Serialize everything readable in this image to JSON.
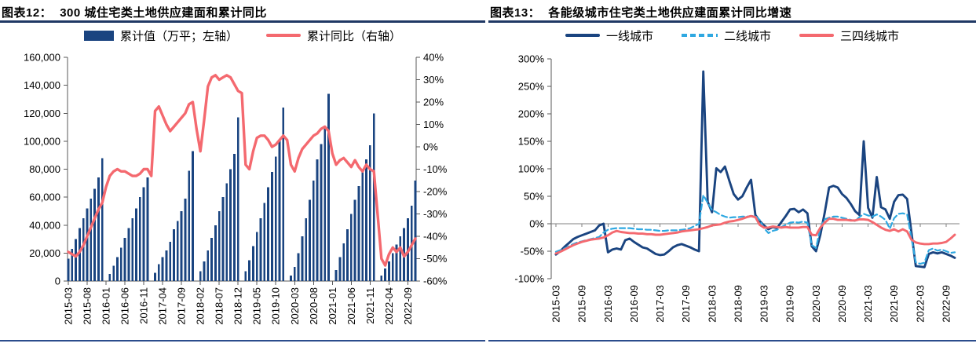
{
  "colors": {
    "navy": "#1A4480",
    "salmon": "#F4696F",
    "lightblue": "#2FA8E1",
    "rule_dark": "#1F3864",
    "rule_bottom": "#2B4C8C",
    "axis_gray": "#595959"
  },
  "chart_data": [
    {
      "type": "bar",
      "fig_label": "图表12：",
      "title": "300 城住宅类土地供应建面和累计同比",
      "legend_position": "top",
      "x_monthly_start": "2015-03",
      "x_tick_every": 5,
      "x_tick_labels": [
        "2015-03",
        "2015-08",
        "2016-01",
        "2016-06",
        "2016-11",
        "2017-04",
        "2017-09",
        "2018-02",
        "2018-07",
        "2018-12",
        "2019-05",
        "2019-10",
        "2020-03",
        "2020-08",
        "2021-01",
        "2021-06",
        "2021-11",
        "2022-04",
        "2022-09"
      ],
      "left_axis": {
        "min": 0,
        "max": 160000,
        "step": 20000,
        "tick_labels": [
          "0",
          "20,000",
          "40,000",
          "60,000",
          "80,000",
          "100,000",
          "120,000",
          "140,000",
          "160,000"
        ]
      },
      "right_axis": {
        "min": -60,
        "max": 40,
        "step": 10,
        "tick_labels": [
          "-60%",
          "-50%",
          "-40%",
          "-30%",
          "-20%",
          "-10%",
          "0%",
          "10%",
          "20%",
          "30%",
          "40%"
        ]
      },
      "series": [
        {
          "name": "累计值（万平；左轴）",
          "type": "bar",
          "axis": "left",
          "color": "#1A4480",
          "values": [
            16000,
            23000,
            30000,
            38000,
            45000,
            52000,
            59000,
            66000,
            74000,
            88000,
            null,
            5000,
            11000,
            17000,
            24000,
            31000,
            38000,
            45000,
            52000,
            60000,
            67000,
            74000,
            null,
            6000,
            12000,
            17000,
            22000,
            28000,
            37000,
            43000,
            50000,
            59000,
            79000,
            93000,
            null,
            7000,
            14000,
            22000,
            31000,
            40000,
            50000,
            60000,
            70000,
            80000,
            91000,
            117000,
            null,
            7000,
            15000,
            25000,
            35000,
            45000,
            56000,
            67000,
            78000,
            89000,
            101000,
            124000,
            null,
            4000,
            10000,
            20000,
            32000,
            45000,
            58000,
            72000,
            87000,
            98000,
            111000,
            134000,
            null,
            8000,
            17000,
            27000,
            37000,
            48000,
            58000,
            68000,
            78000,
            87000,
            97000,
            120000,
            null,
            4000,
            9000,
            14000,
            20000,
            26000,
            32000,
            38000,
            45000,
            54000,
            72000
          ]
        },
        {
          "name": "累计同比（右轴）",
          "type": "line",
          "axis": "right",
          "color": "#F4696F",
          "values": [
            -47,
            -48,
            -49,
            -47,
            -44,
            -40,
            -36,
            -32,
            -28,
            -25,
            -18,
            -13,
            -11,
            -10,
            -11,
            -11,
            -12,
            -13,
            -13,
            -12,
            -10,
            -10,
            -13,
            16,
            18,
            14,
            10,
            7,
            9,
            11,
            13,
            15,
            19,
            20,
            8,
            -2,
            12,
            27,
            31,
            32,
            30,
            31,
            32,
            31,
            28,
            25,
            24,
            -8,
            -10,
            -2,
            4,
            5,
            5,
            3,
            0,
            1,
            3,
            5,
            3,
            -8,
            -11,
            -5,
            -1,
            1,
            3,
            5,
            6,
            8,
            9,
            7,
            -3,
            -8,
            -6,
            -5,
            -7,
            -9,
            -6,
            -9,
            -11,
            -8,
            -10,
            -11,
            null,
            -50,
            -53,
            -48,
            -45,
            -47,
            -45,
            -49,
            -47,
            -44,
            -41
          ]
        }
      ]
    },
    {
      "type": "line",
      "fig_label": "图表13：",
      "title": "各能级城市住宅类土地供应建面累计同比增速",
      "legend_position": "top",
      "x_monthly_start": "2015-03",
      "x_tick_every": 6,
      "x_tick_labels": [
        "2015-03",
        "2015-09",
        "2016-03",
        "2016-09",
        "2017-03",
        "2017-09",
        "2018-03",
        "2018-09",
        "2019-03",
        "2019-09",
        "2020-03",
        "2020-09",
        "2021-03",
        "2021-09",
        "2022-03",
        "2022-09"
      ],
      "y_axis": {
        "min": -100,
        "max": 300,
        "step": 50,
        "tick_labels": [
          "-100%",
          "-50%",
          "0%",
          "50%",
          "100%",
          "150%",
          "200%",
          "250%",
          "300%"
        ]
      },
      "series": [
        {
          "name": "一线城市",
          "type": "line",
          "style": "solid",
          "color": "#1A4480",
          "values": [
            -56,
            -50,
            -42,
            -35,
            -28,
            -24,
            -21,
            -18,
            -15,
            -12,
            -3,
            0,
            -52,
            -47,
            -45,
            -47,
            -30,
            -27,
            -33,
            -38,
            -43,
            -45,
            -50,
            -55,
            -57,
            -56,
            -50,
            -43,
            -39,
            -37,
            -40,
            -43,
            -47,
            -50,
            277,
            40,
            21,
            101,
            94,
            104,
            78,
            54,
            44,
            50,
            66,
            80,
            16,
            5,
            -3,
            -10,
            -6,
            -8,
            3,
            14,
            26,
            27,
            21,
            26,
            19,
            -41,
            -50,
            -20,
            20,
            66,
            69,
            66,
            54,
            47,
            36,
            23,
            16,
            150,
            29,
            11,
            85,
            30,
            26,
            9,
            40,
            52,
            53,
            45,
            null,
            -77,
            -78,
            -79,
            -55,
            -52,
            -54,
            -52,
            -55,
            -58,
            -62
          ]
        },
        {
          "name": "二线城市",
          "type": "line",
          "style": "dashed",
          "color": "#2FA8E1",
          "values": [
            -51,
            -48,
            -45,
            -41,
            -37,
            -34,
            -32,
            -30,
            -28,
            -26,
            -24,
            -16,
            -11,
            -9,
            -8,
            -8,
            -8,
            -8,
            -9,
            -10,
            -10,
            -11,
            -11,
            -12,
            -13,
            -13,
            -12,
            -12,
            -12,
            -11,
            -10,
            -8,
            -4,
            0,
            52,
            38,
            25,
            21,
            16,
            13,
            11,
            12,
            12,
            13,
            13,
            14,
            14,
            7,
            -8,
            -17,
            -13,
            -11,
            -6,
            -2,
            2,
            3,
            2,
            4,
            2,
            -39,
            -44,
            -7,
            8,
            11,
            13,
            13,
            11,
            9,
            7,
            5,
            12,
            18,
            15,
            13,
            17,
            13,
            7,
            -9,
            10,
            18,
            19,
            17,
            null,
            -70,
            -73,
            -71,
            -48,
            -45,
            -49,
            -47,
            -50,
            -53,
            -52
          ]
        },
        {
          "name": "三四线城市",
          "type": "line",
          "style": "solid",
          "color": "#F4696F",
          "values": [
            -54,
            -51,
            -47,
            -43,
            -39,
            -36,
            -33,
            -31,
            -29,
            -28,
            -27,
            -25,
            -21,
            -16,
            -13,
            -15,
            -16,
            -17,
            -17,
            -18,
            -18,
            -19,
            -19,
            -20,
            -20,
            -19,
            -18,
            -17,
            -16,
            -14,
            -13,
            -12,
            -11,
            -10,
            -8,
            -6,
            -3,
            -2,
            -1,
            2,
            4,
            5,
            7,
            9,
            12,
            14,
            12,
            -2,
            -7,
            -7,
            -5,
            -6,
            -7,
            -6,
            -7,
            -7,
            -7,
            -6,
            -6,
            -20,
            -21,
            -7,
            2,
            9,
            9,
            7,
            7,
            7,
            6,
            6,
            8,
            8,
            7,
            3,
            -2,
            -7,
            -11,
            -13,
            -10,
            -14,
            -10,
            -14,
            -29,
            -34,
            -36,
            -37,
            -37,
            -36,
            -36,
            -35,
            -33,
            -27,
            -20
          ]
        }
      ]
    }
  ]
}
